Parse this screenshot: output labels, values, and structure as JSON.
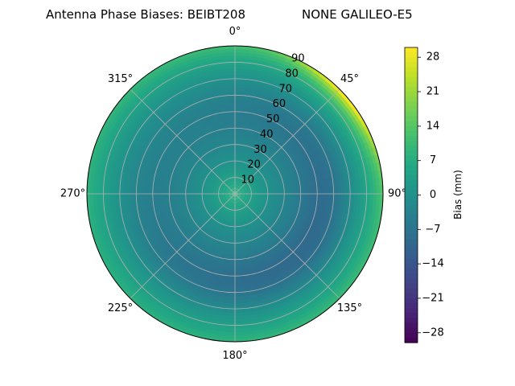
{
  "chart_data": {
    "type": "heatmap",
    "projection": "polar",
    "title_left": "Antenna Phase Biases: BEIBT208",
    "title_right": "NONE GALILEO-E5",
    "theta_zero_location": "top",
    "theta_direction": "clockwise",
    "theta_ticks": [
      {
        "deg": 0,
        "label": "0°"
      },
      {
        "deg": 45,
        "label": "45°"
      },
      {
        "deg": 90,
        "label": "90°"
      },
      {
        "deg": 135,
        "label": "135°"
      },
      {
        "deg": 180,
        "label": "180°"
      },
      {
        "deg": 225,
        "label": "225°"
      },
      {
        "deg": 270,
        "label": "270°"
      },
      {
        "deg": 315,
        "label": "315°"
      }
    ],
    "r_ticks": [
      10,
      20,
      30,
      40,
      50,
      60,
      70,
      80,
      90
    ],
    "r_range": [
      0,
      90
    ],
    "grid": true,
    "colormap": "viridis",
    "colorbar": {
      "label": "Bias (mm)",
      "range": [
        -30,
        30
      ],
      "ticks": [
        28,
        21,
        14,
        7,
        0,
        -7,
        -14,
        -21,
        -28
      ]
    },
    "field_description_points": [
      {
        "azimuth_deg": 0,
        "zenith_deg": 45,
        "bias_mm": -4
      },
      {
        "azimuth_deg": 45,
        "zenith_deg": 88,
        "bias_mm": 24
      },
      {
        "azimuth_deg": 90,
        "zenith_deg": 88,
        "bias_mm": 12
      },
      {
        "azimuth_deg": 130,
        "zenith_deg": 55,
        "bias_mm": -9
      },
      {
        "azimuth_deg": 270,
        "zenith_deg": 88,
        "bias_mm": 7
      }
    ]
  }
}
